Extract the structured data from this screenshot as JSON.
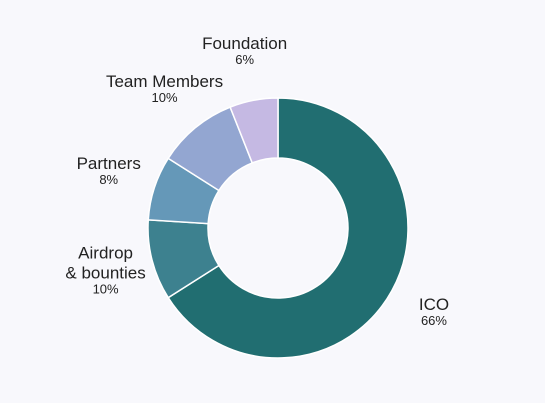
{
  "chart_data": {
    "type": "pie",
    "variant": "donut",
    "categories": [
      "ICO",
      "Airdrop & bounties",
      "Partners",
      "Team Members",
      "Foundation"
    ],
    "values": [
      66,
      10,
      8,
      10,
      6
    ],
    "value_labels": [
      "66%",
      "10%",
      "8%",
      "10%",
      "6%"
    ],
    "label_lines": [
      [
        "ICO"
      ],
      [
        "Airdrop",
        "& bounties"
      ],
      [
        "Partners"
      ],
      [
        "Team Members"
      ],
      [
        "Foundation"
      ]
    ],
    "colors": [
      "#216e71",
      "#3d818f",
      "#6598b8",
      "#93a6d1",
      "#c5b9e3"
    ],
    "start_angle_deg": 0,
    "direction": "clockwise",
    "legend": "none"
  }
}
